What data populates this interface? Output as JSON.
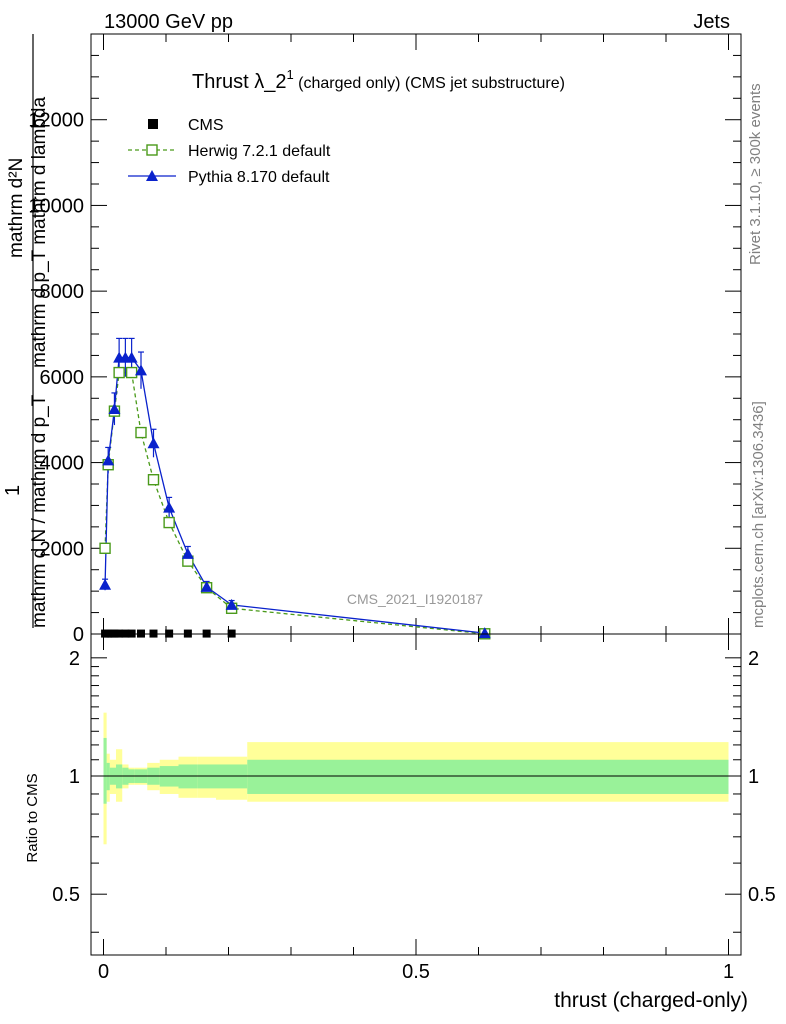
{
  "header": {
    "left": "13000 GeV pp",
    "right": "Jets",
    "title_main": "Thrust λ_2",
    "title_sup": "1",
    "title_rest": " (charged only) (CMS jet substructure)",
    "analysis_id": "CMS_2021_I1920187",
    "rivet_info": "Rivet 3.1.10, ≥ 300k events",
    "mcplots_info": "mcplots.cern.ch [arXiv:1306.3436]"
  },
  "main_ylabel": {
    "line_top": "mathrm d²N",
    "line_mid": "mathrm d p_T mathrm d lambda",
    "one": "1",
    "line_bottom": "mathrm d N / mathrm d p_T"
  },
  "ratio_ylabel": "Ratio to CMS",
  "xlabel": "thrust (charged-only)",
  "legend": [
    {
      "label": "CMS",
      "color": "#000000",
      "marker": "square-filled"
    },
    {
      "label": "Herwig 7.2.1 default",
      "color": "#4a9a1a",
      "marker": "square-open"
    },
    {
      "label": "Pythia 8.170 default",
      "color": "#0a22cc",
      "marker": "triangle-filled"
    }
  ],
  "chart_data": {
    "type": "line",
    "xlim": [
      -0.02,
      1.02
    ],
    "ylim": [
      0,
      14000
    ],
    "ratio_ylim": [
      0.35,
      2.3
    ],
    "x_ticks": [
      "0",
      "0.5",
      "1"
    ],
    "y_ticks": [
      "0",
      "2000",
      "4000",
      "6000",
      "8000",
      "10000",
      "12000"
    ],
    "ratio_ticks": [
      "0.5",
      "1",
      "2"
    ],
    "series": [
      {
        "name": "CMS",
        "x": [
          0.0025,
          0.0075,
          0.0125,
          0.0175,
          0.025,
          0.035,
          0.045,
          0.06,
          0.08,
          0.105,
          0.135,
          0.165,
          0.205
        ],
        "y": [
          10,
          10,
          10,
          10,
          10,
          10,
          10,
          10,
          10,
          10,
          10,
          10,
          10
        ]
      },
      {
        "name": "Herwig 7.2.1 default",
        "x": [
          0.0025,
          0.0075,
          0.0175,
          0.025,
          0.045,
          0.06,
          0.08,
          0.105,
          0.135,
          0.165,
          0.205,
          0.61
        ],
        "y": [
          2000,
          3950,
          5200,
          6100,
          6100,
          4700,
          3600,
          2600,
          1700,
          1080,
          600,
          5
        ]
      },
      {
        "name": "Pythia 8.170 default",
        "x": [
          0.0025,
          0.0075,
          0.0175,
          0.025,
          0.035,
          0.045,
          0.06,
          0.08,
          0.105,
          0.135,
          0.165,
          0.205,
          0.61
        ],
        "y": [
          1150,
          4050,
          5250,
          6450,
          6450,
          6450,
          6150,
          4450,
          2950,
          1870,
          1100,
          680,
          20
        ]
      }
    ],
    "ratio_band": {
      "x_edges": [
        0.0,
        0.005,
        0.01,
        0.02,
        0.03,
        0.04,
        0.05,
        0.07,
        0.09,
        0.12,
        0.15,
        0.18,
        0.23,
        1.0
      ],
      "inner_low": [
        0.85,
        0.92,
        0.95,
        0.93,
        0.95,
        0.96,
        0.96,
        0.95,
        0.94,
        0.93,
        0.93,
        0.93,
        0.9
      ],
      "inner_high": [
        1.25,
        1.08,
        1.05,
        1.07,
        1.05,
        1.04,
        1.04,
        1.05,
        1.06,
        1.07,
        1.07,
        1.07,
        1.1
      ],
      "outer_low": [
        0.67,
        0.86,
        0.9,
        0.86,
        0.93,
        0.95,
        0.95,
        0.92,
        0.9,
        0.88,
        0.88,
        0.87,
        0.86
      ],
      "outer_high": [
        1.45,
        1.14,
        1.1,
        1.17,
        1.07,
        1.05,
        1.05,
        1.08,
        1.1,
        1.12,
        1.12,
        1.12,
        1.22
      ],
      "inner_color": "#99f299",
      "outer_color": "#ffff99"
    }
  }
}
